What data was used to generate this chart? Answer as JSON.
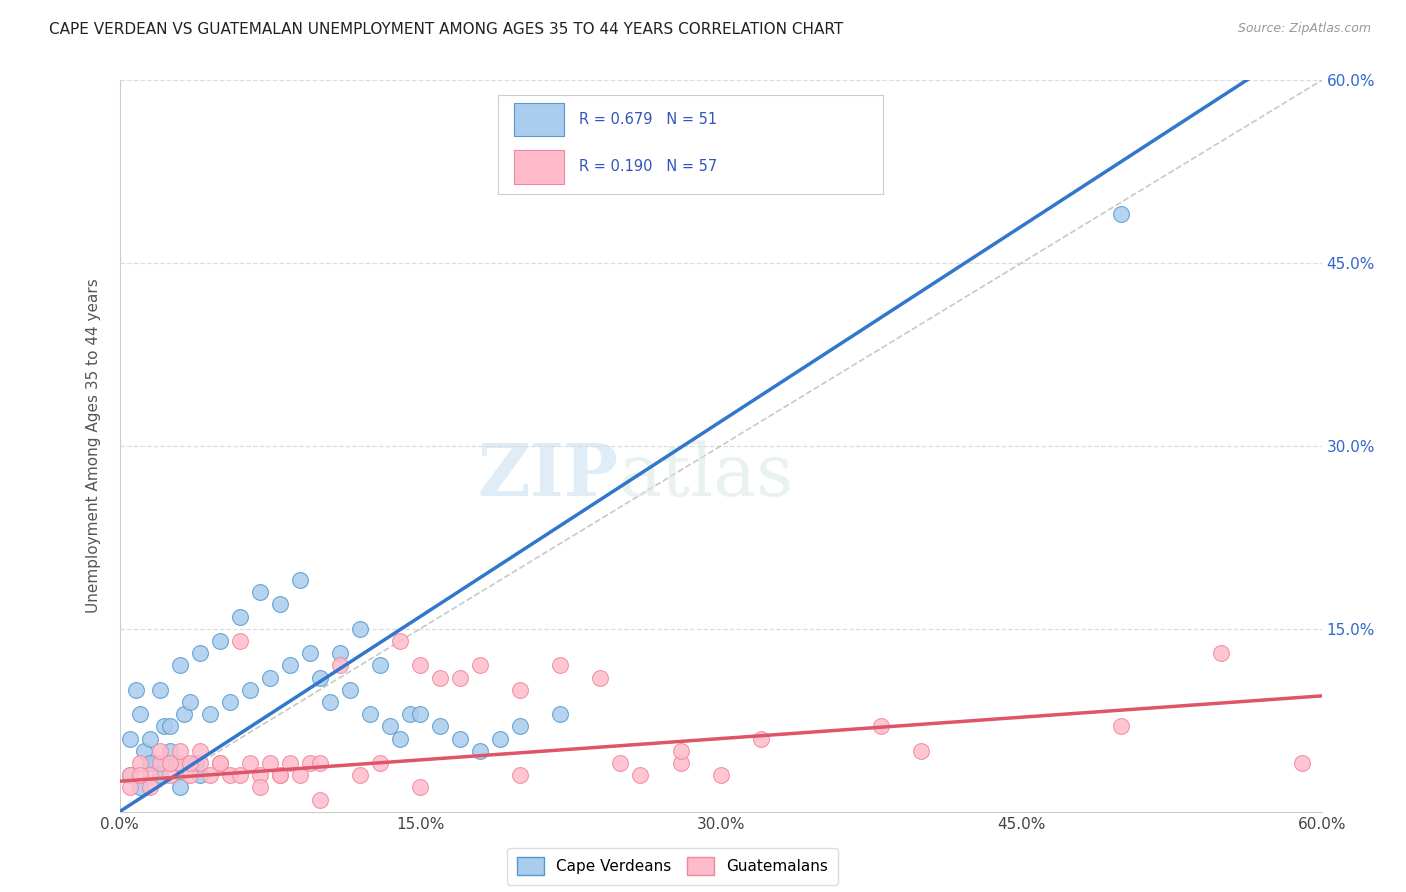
{
  "title": "CAPE VERDEAN VS GUATEMALAN UNEMPLOYMENT AMONG AGES 35 TO 44 YEARS CORRELATION CHART",
  "source": "Source: ZipAtlas.com",
  "ylabel": "Unemployment Among Ages 35 to 44 years",
  "xlim": [
    0.0,
    0.6
  ],
  "ylim": [
    0.0,
    0.6
  ],
  "xtick_vals": [
    0.0,
    0.15,
    0.3,
    0.45,
    0.6
  ],
  "xtick_labels": [
    "0.0%",
    "15.0%",
    "30.0%",
    "45.0%",
    "60.0%"
  ],
  "ytick_vals": [
    0.15,
    0.3,
    0.45,
    0.6
  ],
  "ytick_labels": [
    "15.0%",
    "30.0%",
    "45.0%",
    "60.0%"
  ],
  "cape_verdean_color": "#aaccee",
  "cape_verdean_edge": "#5599cc",
  "guatemalan_color": "#ffbbcc",
  "guatemalan_edge": "#ee8899",
  "cv_line_color": "#3377cc",
  "gt_line_color": "#dd5566",
  "cape_verdean_R": 0.679,
  "cape_verdean_N": 51,
  "guatemalan_R": 0.19,
  "guatemalan_N": 57,
  "legend_label_cv": "Cape Verdeans",
  "legend_label_gt": "Guatemalans",
  "watermark_zip": "ZIP",
  "watermark_atlas": "atlas",
  "background_color": "#ffffff",
  "grid_color": "#dddddd",
  "cv_line_x0": 0.0,
  "cv_line_y0": 0.0,
  "cv_line_x1": 0.45,
  "cv_line_y1": 0.48,
  "gt_line_x0": 0.0,
  "gt_line_y0": 0.025,
  "gt_line_x1": 0.6,
  "gt_line_y1": 0.095,
  "cv_scatter_x": [
    0.005,
    0.008,
    0.01,
    0.012,
    0.015,
    0.018,
    0.02,
    0.022,
    0.025,
    0.028,
    0.03,
    0.032,
    0.035,
    0.038,
    0.04,
    0.045,
    0.05,
    0.055,
    0.06,
    0.065,
    0.07,
    0.075,
    0.08,
    0.085,
    0.09,
    0.095,
    0.1,
    0.105,
    0.11,
    0.115,
    0.12,
    0.125,
    0.13,
    0.135,
    0.14,
    0.145,
    0.15,
    0.16,
    0.17,
    0.18,
    0.19,
    0.2,
    0.22,
    0.005,
    0.01,
    0.015,
    0.02,
    0.025,
    0.03,
    0.04,
    0.5
  ],
  "cv_scatter_y": [
    0.06,
    0.1,
    0.08,
    0.05,
    0.06,
    0.04,
    0.1,
    0.07,
    0.07,
    0.04,
    0.12,
    0.08,
    0.09,
    0.04,
    0.13,
    0.08,
    0.14,
    0.09,
    0.16,
    0.1,
    0.18,
    0.11,
    0.17,
    0.12,
    0.19,
    0.13,
    0.11,
    0.09,
    0.13,
    0.1,
    0.15,
    0.08,
    0.12,
    0.07,
    0.06,
    0.08,
    0.08,
    0.07,
    0.06,
    0.05,
    0.06,
    0.07,
    0.08,
    0.03,
    0.02,
    0.04,
    0.03,
    0.05,
    0.02,
    0.03,
    0.49
  ],
  "gt_scatter_x": [
    0.005,
    0.01,
    0.015,
    0.02,
    0.025,
    0.03,
    0.035,
    0.04,
    0.045,
    0.05,
    0.055,
    0.06,
    0.065,
    0.07,
    0.075,
    0.08,
    0.085,
    0.09,
    0.095,
    0.1,
    0.11,
    0.12,
    0.13,
    0.14,
    0.15,
    0.16,
    0.17,
    0.18,
    0.2,
    0.22,
    0.24,
    0.26,
    0.28,
    0.3,
    0.005,
    0.01,
    0.015,
    0.02,
    0.025,
    0.03,
    0.035,
    0.04,
    0.05,
    0.06,
    0.07,
    0.08,
    0.28,
    0.32,
    0.38,
    0.4,
    0.5,
    0.55,
    0.25,
    0.2,
    0.15,
    0.59,
    0.1
  ],
  "gt_scatter_y": [
    0.03,
    0.04,
    0.03,
    0.04,
    0.03,
    0.04,
    0.03,
    0.04,
    0.03,
    0.04,
    0.03,
    0.14,
    0.04,
    0.03,
    0.04,
    0.03,
    0.04,
    0.03,
    0.04,
    0.04,
    0.12,
    0.03,
    0.04,
    0.14,
    0.12,
    0.11,
    0.11,
    0.12,
    0.1,
    0.12,
    0.11,
    0.03,
    0.04,
    0.03,
    0.02,
    0.03,
    0.02,
    0.05,
    0.04,
    0.05,
    0.04,
    0.05,
    0.04,
    0.03,
    0.02,
    0.03,
    0.05,
    0.06,
    0.07,
    0.05,
    0.07,
    0.13,
    0.04,
    0.03,
    0.02,
    0.04,
    0.01
  ]
}
